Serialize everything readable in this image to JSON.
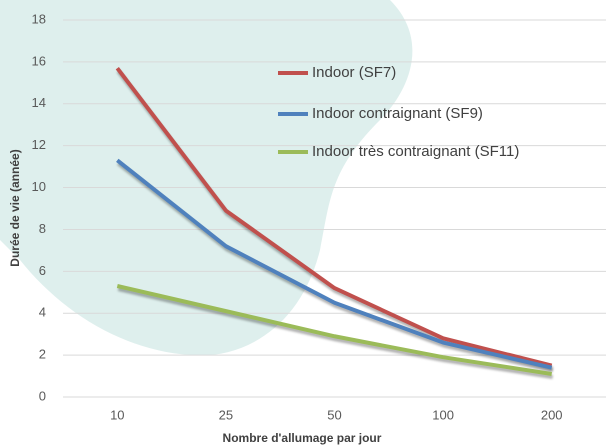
{
  "chart_data": {
    "type": "line",
    "x_label": "Nombre d'allumage par jour",
    "y_label": "Durée de vie (année)",
    "categories": [
      "10",
      "25",
      "50",
      "100",
      "200"
    ],
    "series": [
      {
        "name": "Indoor (SF7)",
        "color": "#c0504d",
        "values": [
          15.7,
          8.9,
          5.2,
          2.8,
          1.5
        ]
      },
      {
        "name": "Indoor contraignant (SF9)",
        "color": "#4f81bd",
        "values": [
          11.3,
          7.2,
          4.5,
          2.6,
          1.4
        ]
      },
      {
        "name": "Indoor très contraignant (SF11)",
        "color": "#9bbb59",
        "values": [
          5.3,
          4.1,
          2.9,
          1.9,
          1.1
        ]
      }
    ],
    "ylim": [
      0,
      18
    ],
    "yticks": [
      0,
      2,
      4,
      6,
      8,
      10,
      12,
      14,
      16,
      18
    ],
    "grid": true
  }
}
